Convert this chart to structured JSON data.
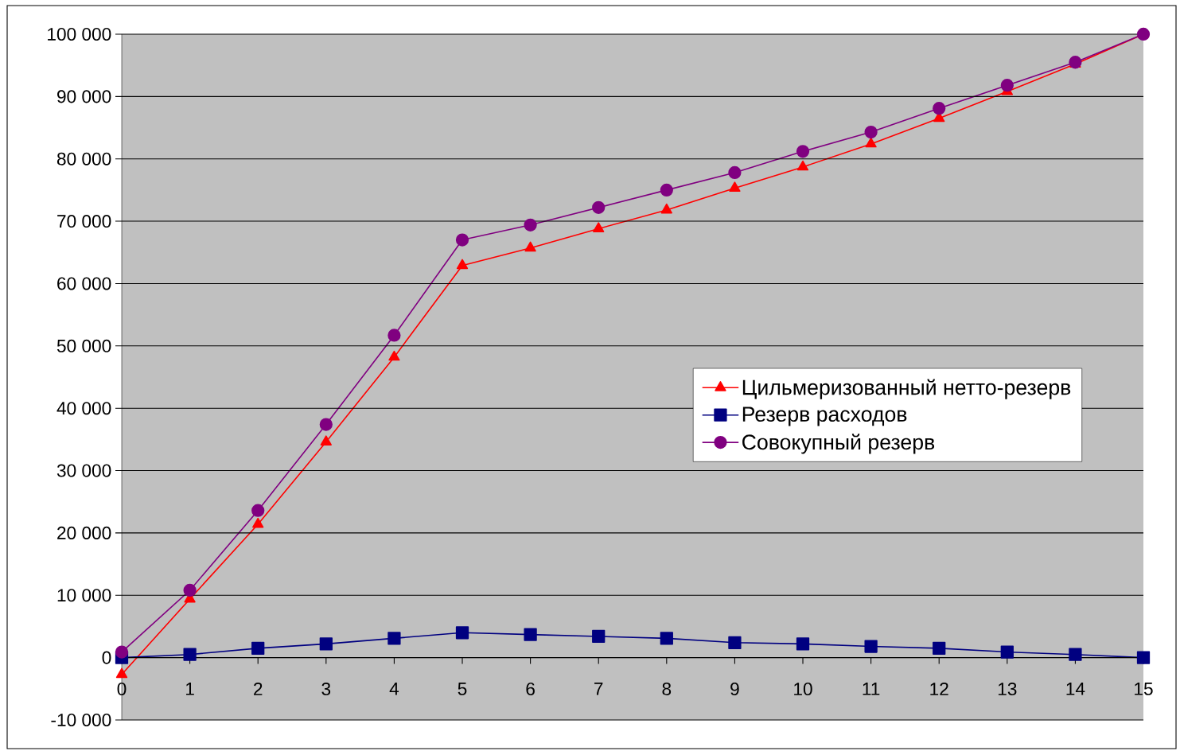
{
  "chart_data": {
    "type": "line",
    "x": [
      0,
      1,
      2,
      3,
      4,
      5,
      6,
      7,
      8,
      9,
      10,
      11,
      12,
      13,
      14,
      15
    ],
    "series": [
      {
        "name": "Цильмеризованный нетто-резерв",
        "color": "#ff0000",
        "marker": "triangle",
        "values": [
          -2700,
          9400,
          21400,
          34600,
          48200,
          62900,
          65700,
          68800,
          71800,
          75300,
          78700,
          82400,
          86500,
          90800,
          95200,
          100000
        ]
      },
      {
        "name": "Резерв расходов",
        "color": "#000080",
        "marker": "square",
        "values": [
          0,
          500,
          1500,
          2200,
          3100,
          4000,
          3700,
          3400,
          3100,
          2400,
          2200,
          1800,
          1500,
          900,
          500,
          0
        ]
      },
      {
        "name": "Совокупный резерв",
        "color": "#800080",
        "marker": "circle",
        "values": [
          900,
          10800,
          23600,
          37400,
          51700,
          67000,
          69400,
          72200,
          75000,
          77800,
          81200,
          84300,
          88100,
          91800,
          95500,
          100000
        ]
      }
    ],
    "xlim": [
      0,
      15
    ],
    "xticks": [
      0,
      1,
      2,
      3,
      4,
      5,
      6,
      7,
      8,
      9,
      10,
      11,
      12,
      13,
      14,
      15
    ],
    "ylim": [
      -10000,
      100000
    ],
    "yticks": [
      {
        "value": -10000,
        "label": "-10 000"
      },
      0,
      {
        "value": 10000,
        "label": "10 000"
      },
      {
        "value": 20000,
        "label": "20 000"
      },
      {
        "value": 30000,
        "label": "30 000"
      },
      {
        "value": 40000,
        "label": "40 000"
      },
      {
        "value": 50000,
        "label": "50 000"
      },
      {
        "value": 60000,
        "label": "60 000"
      },
      {
        "value": 70000,
        "label": "70 000"
      },
      {
        "value": 80000,
        "label": "80 000"
      },
      {
        "value": 90000,
        "label": "90 000"
      },
      {
        "value": 100000,
        "label": "100 000"
      }
    ],
    "grid": "y",
    "legend": "right",
    "line_style": "solid"
  }
}
